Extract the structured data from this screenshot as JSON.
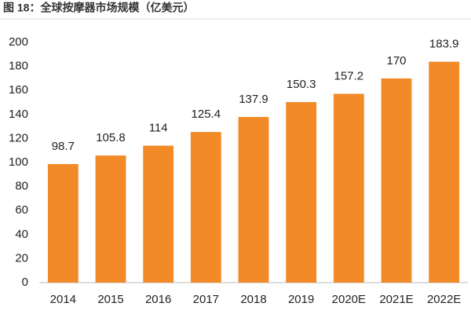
{
  "chart_data": {
    "type": "bar",
    "title": "图 18：全球按摩器市场规模（亿美元）",
    "categories": [
      "2014",
      "2015",
      "2016",
      "2017",
      "2018",
      "2019",
      "2020E",
      "2021E",
      "2022E"
    ],
    "values": [
      98.7,
      105.8,
      114,
      125.4,
      137.9,
      150.3,
      157.2,
      170,
      183.9
    ],
    "color": "#f28a27",
    "ylim": [
      0,
      200
    ],
    "yticks": [
      0,
      20,
      40,
      60,
      80,
      100,
      120,
      140,
      160,
      180,
      200
    ],
    "grid": false
  }
}
